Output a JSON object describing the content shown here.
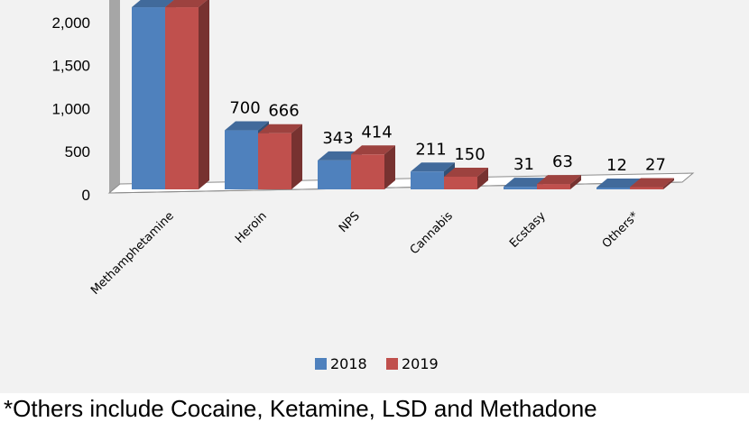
{
  "chart_data": {
    "type": "bar",
    "categories": [
      "Methamphetamine",
      "Heroin",
      "NPS",
      "Cannabis",
      "Ecstasy",
      "Others*"
    ],
    "series": [
      {
        "name": "2018",
        "values": [
          2160,
          700,
          343,
          211,
          31,
          12
        ],
        "labels": [
          "",
          "700",
          "343",
          "211",
          "31",
          "12"
        ],
        "color": "#4f81bd"
      },
      {
        "name": "2019",
        "values": [
          2160,
          666,
          414,
          150,
          63,
          27
        ],
        "labels": [
          "",
          "666",
          "414",
          "150",
          "63",
          "27"
        ],
        "color": "#c0504d"
      }
    ],
    "y_ticks": [
      "0",
      "500",
      "1,000",
      "1,500",
      "2,000"
    ],
    "ylim": [
      0,
      2000
    ],
    "grid": false,
    "legend_position": "bottom"
  },
  "footnote": "*Others include Cocaine, Ketamine, LSD and Methadone"
}
